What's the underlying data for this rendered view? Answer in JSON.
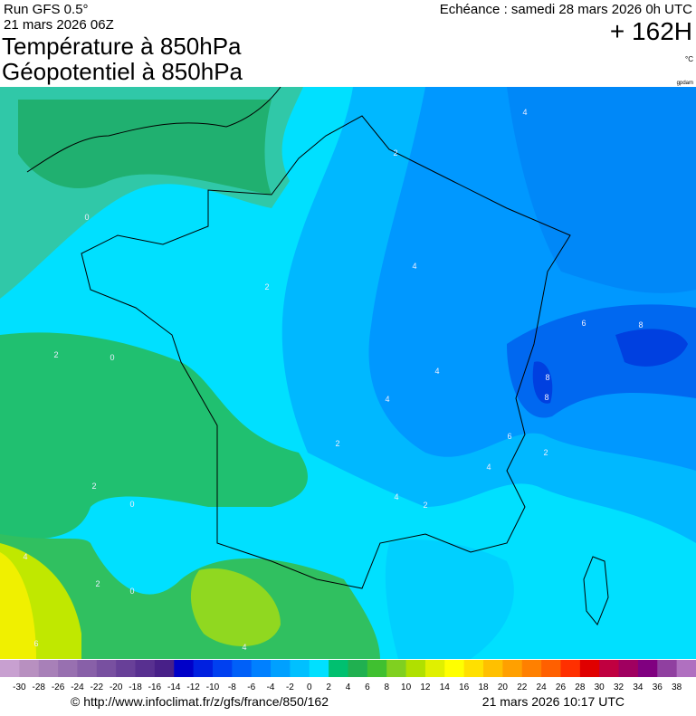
{
  "header": {
    "run": "Run GFS 0.5°",
    "run_date": "21 mars 2026 06Z",
    "title_line1": "Température à 850hPa",
    "title_line2": "Géopotentiel à 850hPa",
    "valid": "Echéance : samedi 28 mars 2026 0h UTC",
    "lead": "+ 162H",
    "unit": "°C",
    "contour_unit": "gpdam"
  },
  "map": {
    "contour_labels": [
      4,
      2,
      0,
      4,
      2,
      6,
      8,
      2,
      0,
      4,
      8,
      8,
      4,
      6,
      2,
      2,
      4,
      4,
      2,
      2,
      0,
      4,
      2,
      0,
      6,
      4
    ]
  },
  "colorbar": {
    "labels": [
      -30,
      -28,
      -26,
      -24,
      -22,
      -20,
      -18,
      -16,
      -14,
      -12,
      -10,
      -8,
      -6,
      -4,
      -2,
      0,
      2,
      4,
      6,
      8,
      10,
      12,
      14,
      16,
      18,
      20,
      22,
      24,
      26,
      28,
      30,
      32,
      34,
      36,
      38
    ],
    "colors": [
      "#c8a0d0",
      "#b890c0",
      "#a880b8",
      "#9870b0",
      "#8860a8",
      "#7850a0",
      "#684098",
      "#583090",
      "#482088",
      "#0000c8",
      "#0020e0",
      "#0040f0",
      "#0060f8",
      "#0080ff",
      "#00a0ff",
      "#00c0ff",
      "#00e0ff",
      "#00c070",
      "#20b050",
      "#40c030",
      "#80d020",
      "#b0e000",
      "#e0f000",
      "#ffff00",
      "#ffe000",
      "#ffc000",
      "#ffa000",
      "#ff8000",
      "#ff6000",
      "#ff3000",
      "#e00000",
      "#c00040",
      "#a00060",
      "#800080",
      "#9040a0",
      "#b070c0"
    ]
  },
  "footer": {
    "source": "© http://www.infoclimat.fr/z/gfs/france/850/162",
    "generated": "21 mars 2026 10:17 UTC"
  }
}
